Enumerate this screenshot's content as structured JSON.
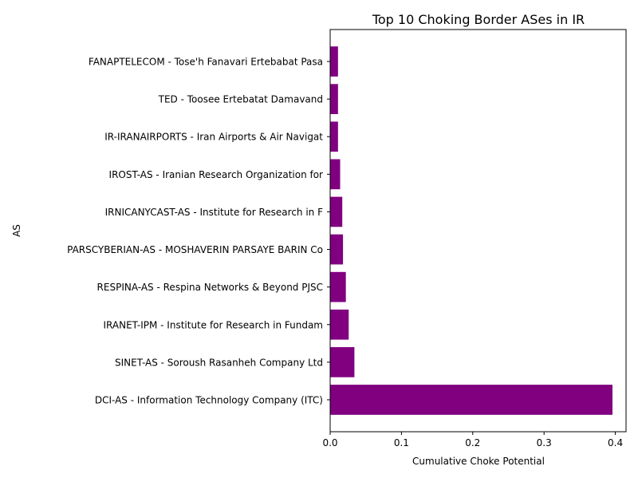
{
  "chart_data": {
    "type": "bar",
    "orientation": "horizontal",
    "title": "Top 10 Choking Border ASes in IR",
    "xlabel": "Cumulative Choke Potential",
    "ylabel": "AS",
    "xlim": [
      0,
      0.415
    ],
    "xticks": [
      "0.0",
      "0.1",
      "0.2",
      "0.3",
      "0.4"
    ],
    "grid": false,
    "bar_color": "#800080",
    "categories": [
      "DCI-AS - Information Technology Company (ITC)",
      "SINET-AS - Soroush Rasanheh Company Ltd",
      "IRANET-IPM - Institute for Research in Fundam",
      "RESPINA-AS - Respina Networks & Beyond PJSC",
      "PARSCYBERIAN-AS - MOSHAVERIN PARSAYE BARIN Co",
      "IRNICANYCAST-AS - Institute for Research in F",
      "IROST-AS - Iranian Research Organization for ",
      "IR-IRANAIRPORTS - Iran Airports & Air Navigat",
      "TED - Toosee Ertebatat Damavand",
      "FANAPTELECOM - Tose'h Fanavari Ertebabat Pasa"
    ],
    "values": [
      0.396,
      0.034,
      0.026,
      0.022,
      0.018,
      0.017,
      0.014,
      0.011,
      0.011,
      0.011
    ]
  }
}
